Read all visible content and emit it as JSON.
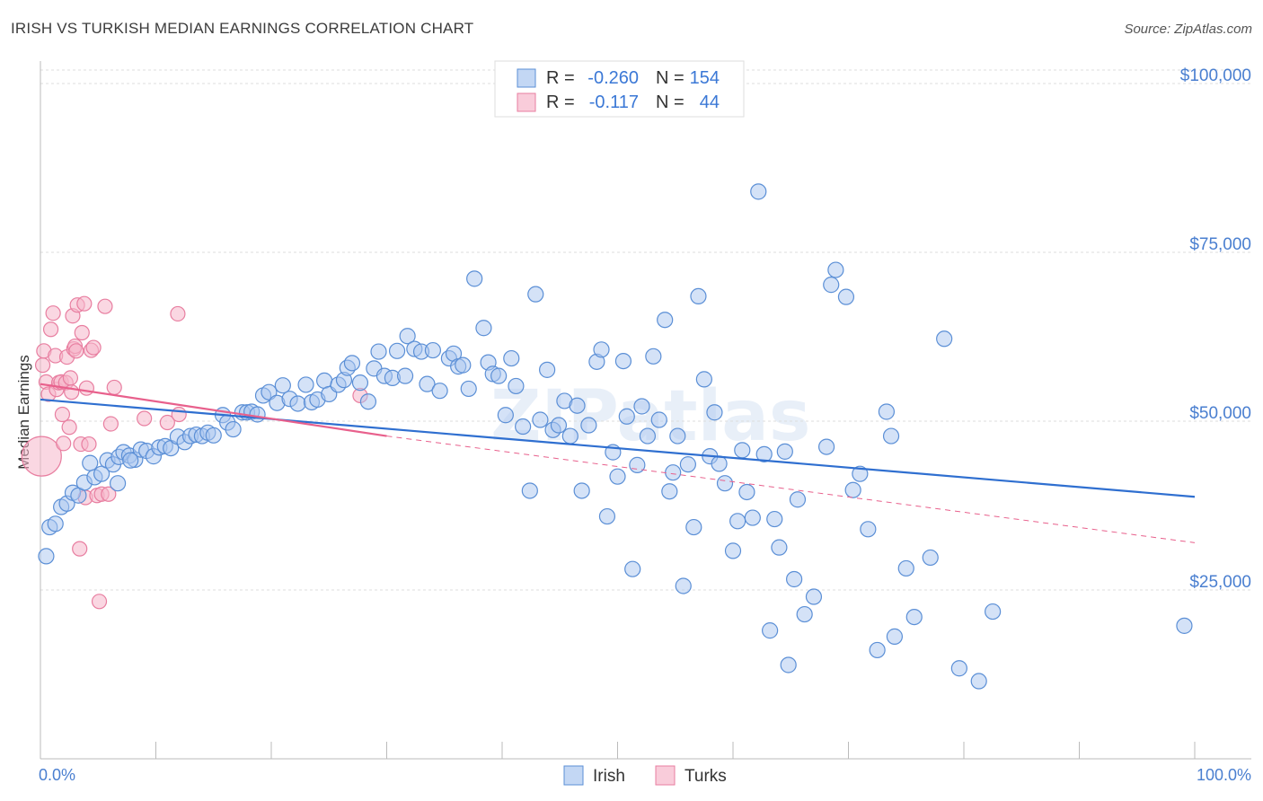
{
  "title": "IRISH VS TURKISH MEDIAN EARNINGS CORRELATION CHART",
  "source": "Source: ZipAtlas.com",
  "watermark": "ZIPatlas",
  "colors": {
    "irish_fill": "#a9c6ef",
    "irish_stroke": "#5b8fd6",
    "irish_line": "#2f6fd0",
    "turks_fill": "#f6b7cb",
    "turks_stroke": "#e87ea0",
    "turks_line": "#e8608c",
    "accent_text": "#3b78d6"
  },
  "stats_box": {
    "rows": [
      {
        "r_label": "R =",
        "r_value": "-0.260",
        "n_label": "N =",
        "n_value": "154",
        "series": "irish"
      },
      {
        "r_label": "R =",
        "r_value": "-0.117",
        "n_label": "N =",
        "n_value": "44",
        "series": "turks"
      }
    ]
  },
  "chart_data": {
    "type": "scatter",
    "title": "IRISH VS TURKISH MEDIAN EARNINGS CORRELATION CHART",
    "xlabel": "",
    "ylabel": "Median Earnings",
    "xlim": [
      0,
      100
    ],
    "ylim": [
      0,
      102000
    ],
    "x_tick_labels": [
      "0.0%",
      "100.0%"
    ],
    "y_ticks": [
      25000,
      50000,
      75000,
      100000
    ],
    "y_tick_labels": [
      "$25,000",
      "$50,000",
      "$75,000",
      "$100,000"
    ],
    "grid": true,
    "legend_position": "bottom-center",
    "legend": [
      "Irish",
      "Turks"
    ],
    "series": [
      {
        "name": "Irish",
        "trend": {
          "x": [
            0,
            100
          ],
          "y": [
            53200,
            38800
          ],
          "style": "solid"
        },
        "points": [
          [
            0.5,
            30000
          ],
          [
            0.8,
            34300
          ],
          [
            1.3,
            34800
          ],
          [
            1.8,
            37300
          ],
          [
            2.3,
            37800
          ],
          [
            2.8,
            39400
          ],
          [
            3.3,
            39000
          ],
          [
            3.8,
            40900
          ],
          [
            4.3,
            43800
          ],
          [
            4.7,
            41700
          ],
          [
            5.3,
            42200
          ],
          [
            5.8,
            44200
          ],
          [
            6.3,
            43600
          ],
          [
            6.8,
            44700
          ],
          [
            7.2,
            45400
          ],
          [
            7.7,
            44900
          ],
          [
            8.2,
            44300
          ],
          [
            8.7,
            45800
          ],
          [
            9.2,
            45600
          ],
          [
            9.8,
            44800
          ],
          [
            10.3,
            46100
          ],
          [
            10.8,
            46300
          ],
          [
            11.3,
            46000
          ],
          [
            11.9,
            47700
          ],
          [
            12.5,
            46900
          ],
          [
            13.0,
            47800
          ],
          [
            13.5,
            48000
          ],
          [
            14.0,
            47800
          ],
          [
            14.5,
            48300
          ],
          [
            15.0,
            47900
          ],
          [
            15.8,
            50900
          ],
          [
            16.2,
            49800
          ],
          [
            16.7,
            48800
          ],
          [
            17.5,
            51300
          ],
          [
            17.9,
            51300
          ],
          [
            18.3,
            51400
          ],
          [
            18.8,
            51000
          ],
          [
            19.3,
            53800
          ],
          [
            19.8,
            54300
          ],
          [
            20.5,
            52700
          ],
          [
            21.0,
            55300
          ],
          [
            21.6,
            53300
          ],
          [
            22.3,
            52600
          ],
          [
            23.0,
            55400
          ],
          [
            23.5,
            52800
          ],
          [
            24.0,
            53200
          ],
          [
            24.6,
            56000
          ],
          [
            25.0,
            54000
          ],
          [
            25.8,
            55400
          ],
          [
            26.3,
            56100
          ],
          [
            26.6,
            57900
          ],
          [
            27.0,
            58600
          ],
          [
            27.7,
            55700
          ],
          [
            28.4,
            52900
          ],
          [
            28.9,
            57800
          ],
          [
            29.3,
            60300
          ],
          [
            29.8,
            56700
          ],
          [
            30.5,
            56400
          ],
          [
            30.9,
            60400
          ],
          [
            31.6,
            56700
          ],
          [
            31.8,
            62600
          ],
          [
            32.4,
            60700
          ],
          [
            33.0,
            60300
          ],
          [
            33.5,
            55500
          ],
          [
            34.0,
            60500
          ],
          [
            34.6,
            54500
          ],
          [
            35.4,
            59300
          ],
          [
            35.8,
            60000
          ],
          [
            36.2,
            58100
          ],
          [
            36.6,
            58300
          ],
          [
            37.1,
            54800
          ],
          [
            37.6,
            71100
          ],
          [
            38.4,
            63800
          ],
          [
            38.8,
            58700
          ],
          [
            39.2,
            57000
          ],
          [
            39.7,
            56700
          ],
          [
            40.3,
            50900
          ],
          [
            40.8,
            59300
          ],
          [
            41.2,
            55200
          ],
          [
            41.8,
            49200
          ],
          [
            42.4,
            39700
          ],
          [
            42.9,
            68800
          ],
          [
            43.3,
            50200
          ],
          [
            43.9,
            57600
          ],
          [
            44.4,
            48700
          ],
          [
            44.9,
            49400
          ],
          [
            45.4,
            53000
          ],
          [
            45.9,
            47800
          ],
          [
            46.5,
            52300
          ],
          [
            46.9,
            39700
          ],
          [
            47.5,
            49400
          ],
          [
            48.2,
            58800
          ],
          [
            48.6,
            60600
          ],
          [
            49.1,
            35900
          ],
          [
            49.6,
            45400
          ],
          [
            50.0,
            41800
          ],
          [
            50.5,
            58900
          ],
          [
            50.8,
            50700
          ],
          [
            51.3,
            28100
          ],
          [
            51.7,
            43500
          ],
          [
            52.1,
            52200
          ],
          [
            52.6,
            47800
          ],
          [
            53.1,
            59600
          ],
          [
            53.6,
            50200
          ],
          [
            54.1,
            65000
          ],
          [
            54.5,
            39600
          ],
          [
            54.8,
            42400
          ],
          [
            55.2,
            47800
          ],
          [
            55.7,
            25600
          ],
          [
            56.1,
            43600
          ],
          [
            56.6,
            34300
          ],
          [
            57.0,
            68500
          ],
          [
            57.5,
            56200
          ],
          [
            58.0,
            44800
          ],
          [
            58.4,
            51300
          ],
          [
            58.8,
            43700
          ],
          [
            59.3,
            40800
          ],
          [
            60.0,
            30800
          ],
          [
            60.4,
            35200
          ],
          [
            60.8,
            45700
          ],
          [
            61.2,
            39500
          ],
          [
            61.7,
            35700
          ],
          [
            62.2,
            84000
          ],
          [
            62.7,
            45100
          ],
          [
            63.2,
            19000
          ],
          [
            63.6,
            35500
          ],
          [
            64.0,
            31300
          ],
          [
            64.5,
            45500
          ],
          [
            64.8,
            13900
          ],
          [
            65.3,
            26600
          ],
          [
            65.6,
            38400
          ],
          [
            66.2,
            21400
          ],
          [
            67.0,
            24000
          ],
          [
            68.1,
            46200
          ],
          [
            68.5,
            70200
          ],
          [
            68.9,
            72400
          ],
          [
            69.8,
            68400
          ],
          [
            70.4,
            39800
          ],
          [
            71.0,
            42200
          ],
          [
            71.7,
            34000
          ],
          [
            72.5,
            16100
          ],
          [
            73.3,
            51400
          ],
          [
            73.7,
            47800
          ],
          [
            74.0,
            18100
          ],
          [
            75.0,
            28200
          ],
          [
            75.7,
            21000
          ],
          [
            77.1,
            29800
          ],
          [
            78.3,
            62200
          ],
          [
            79.6,
            13400
          ],
          [
            81.3,
            11500
          ],
          [
            82.5,
            21800
          ],
          [
            99.1,
            19700
          ],
          [
            6.7,
            40800
          ],
          [
            7.8,
            44200
          ]
        ]
      },
      {
        "name": "Turks",
        "trend": {
          "x": [
            0,
            30
          ],
          "y": [
            55500,
            47800
          ],
          "style": "solid"
        },
        "trend_extension": {
          "x": [
            30,
            100
          ],
          "y": [
            47800,
            32000
          ],
          "style": "dashed"
        },
        "points": [
          [
            0.1,
            44800
          ],
          [
            0.2,
            58300
          ],
          [
            0.3,
            60400
          ],
          [
            0.5,
            55800
          ],
          [
            0.7,
            54000
          ],
          [
            0.9,
            63600
          ],
          [
            1.1,
            66000
          ],
          [
            1.3,
            59700
          ],
          [
            1.4,
            54700
          ],
          [
            1.6,
            55700
          ],
          [
            1.8,
            55800
          ],
          [
            1.9,
            51000
          ],
          [
            2.0,
            46700
          ],
          [
            2.2,
            55700
          ],
          [
            2.3,
            59500
          ],
          [
            2.5,
            49100
          ],
          [
            2.6,
            56400
          ],
          [
            2.7,
            54300
          ],
          [
            2.8,
            65600
          ],
          [
            2.9,
            60700
          ],
          [
            3.0,
            61100
          ],
          [
            3.1,
            60400
          ],
          [
            3.2,
            67200
          ],
          [
            3.4,
            31100
          ],
          [
            3.5,
            46600
          ],
          [
            3.6,
            63100
          ],
          [
            3.8,
            67400
          ],
          [
            3.9,
            38700
          ],
          [
            4.0,
            54900
          ],
          [
            4.2,
            46600
          ],
          [
            4.4,
            60500
          ],
          [
            4.6,
            60900
          ],
          [
            4.9,
            39000
          ],
          [
            5.1,
            23300
          ],
          [
            5.3,
            39200
          ],
          [
            5.6,
            67000
          ],
          [
            5.9,
            39200
          ],
          [
            6.1,
            49600
          ],
          [
            6.4,
            55000
          ],
          [
            9.0,
            50400
          ],
          [
            11.0,
            49800
          ],
          [
            12.0,
            51000
          ],
          [
            11.9,
            65900
          ],
          [
            27.7,
            53800
          ]
        ]
      }
    ]
  },
  "legend": {
    "items": [
      {
        "label": "Irish",
        "series": "irish"
      },
      {
        "label": "Turks",
        "series": "turks"
      }
    ]
  }
}
